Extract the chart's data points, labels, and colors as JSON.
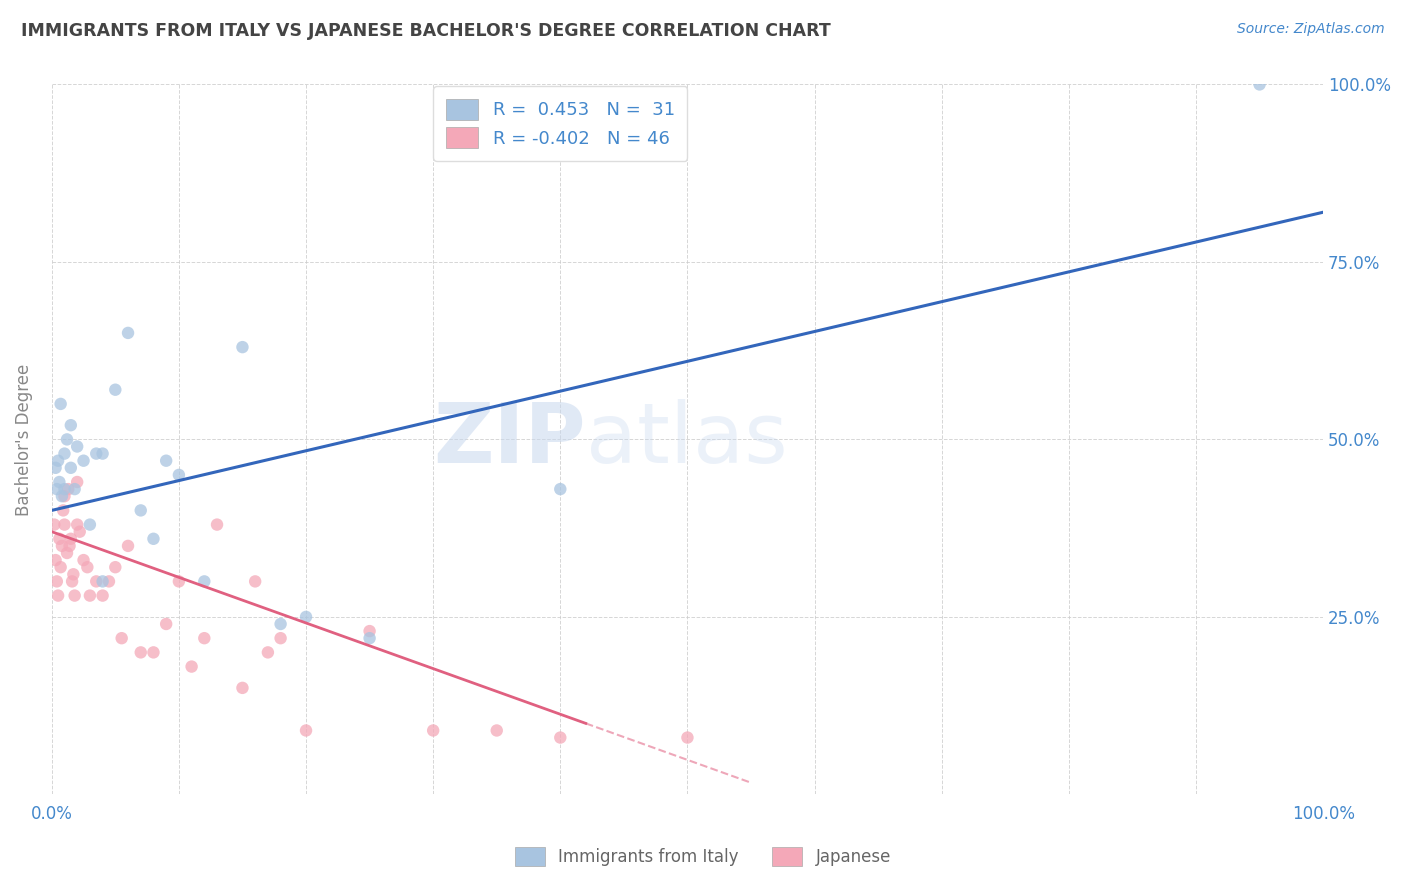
{
  "title": "IMMIGRANTS FROM ITALY VS JAPANESE BACHELOR'S DEGREE CORRELATION CHART",
  "source_text": "Source: ZipAtlas.com",
  "ylabel": "Bachelor's Degree",
  "watermark_zip": "ZIP",
  "watermark_atlas": "atlas",
  "xlim": [
    0,
    100
  ],
  "ylim": [
    0,
    100
  ],
  "ytick_positions": [
    25,
    50,
    75,
    100
  ],
  "ytick_labels": [
    "25.0%",
    "50.0%",
    "75.0%",
    "100.0%"
  ],
  "legend1_r": "0.453",
  "legend1_n": "31",
  "legend2_r": "-0.402",
  "legend2_n": "46",
  "blue_color": "#a8c4e0",
  "pink_color": "#f4a8b8",
  "blue_line_color": "#3366bb",
  "pink_line_color": "#e06080",
  "grid_color": "#cccccc",
  "title_color": "#444444",
  "axis_tick_color": "#4488cc",
  "ylabel_color": "#888888",
  "background_color": "#ffffff",
  "blue_line_start_y": 40,
  "blue_line_end_y": 82,
  "pink_line_start_y": 37,
  "pink_line_end_y": 10,
  "pink_solid_end_x": 42,
  "pink_dash_end_x": 55,
  "blue_scatter_x": [
    0.3,
    0.4,
    0.5,
    0.6,
    0.7,
    0.8,
    1.0,
    1.0,
    1.2,
    1.5,
    1.5,
    1.8,
    2.0,
    2.5,
    3.0,
    3.5,
    4.0,
    4.0,
    5.0,
    6.0,
    7.0,
    8.0,
    9.0,
    10.0,
    12.0,
    15.0,
    18.0,
    20.0,
    25.0,
    40.0,
    95.0
  ],
  "blue_scatter_y": [
    46,
    43,
    47,
    44,
    55,
    42,
    48,
    43,
    50,
    52,
    46,
    43,
    49,
    47,
    38,
    48,
    30,
    48,
    57,
    65,
    40,
    36,
    47,
    45,
    30,
    63,
    24,
    25,
    22,
    43,
    100
  ],
  "pink_scatter_x": [
    0.2,
    0.3,
    0.4,
    0.5,
    0.6,
    0.7,
    0.8,
    0.9,
    1.0,
    1.0,
    1.2,
    1.3,
    1.4,
    1.5,
    1.6,
    1.7,
    1.8,
    2.0,
    2.0,
    2.2,
    2.5,
    2.8,
    3.0,
    3.5,
    4.0,
    4.5,
    5.0,
    5.5,
    6.0,
    7.0,
    8.0,
    9.0,
    10.0,
    11.0,
    12.0,
    13.0,
    15.0,
    16.0,
    17.0,
    18.0,
    20.0,
    25.0,
    30.0,
    35.0,
    40.0,
    50.0
  ],
  "pink_scatter_y": [
    38,
    33,
    30,
    28,
    36,
    32,
    35,
    40,
    42,
    38,
    34,
    43,
    35,
    36,
    30,
    31,
    28,
    44,
    38,
    37,
    33,
    32,
    28,
    30,
    28,
    30,
    32,
    22,
    35,
    20,
    20,
    24,
    30,
    18,
    22,
    38,
    15,
    30,
    20,
    22,
    9,
    23,
    9,
    9,
    8,
    8
  ]
}
